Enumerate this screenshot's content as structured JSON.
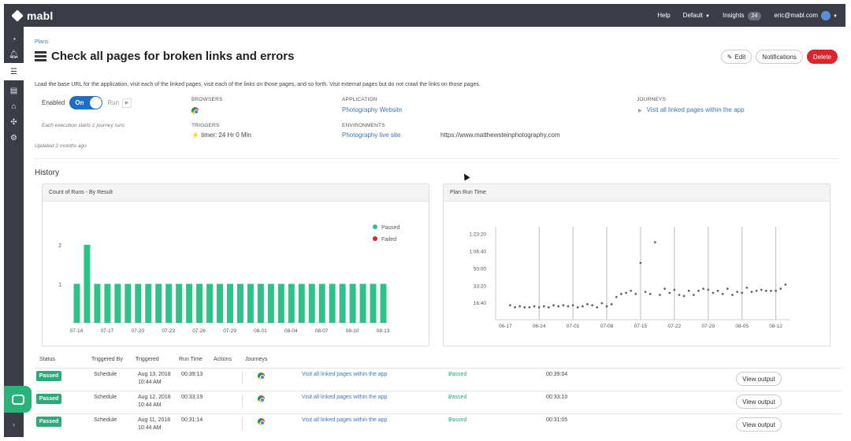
{
  "brand": {
    "name": "mabl",
    "accent": "#2aab7a",
    "danger": "#d9262c",
    "topbar_bg": "#3a3d45"
  },
  "topnav": {
    "help": "Help",
    "workspace": "Default",
    "insights": "Insights",
    "insights_count": "24",
    "user": "eric@mabl.com"
  },
  "sidebar": {
    "icons": [
      "dashboard-icon",
      "bell-icon",
      "plans-icon",
      "tests-icon",
      "environments-icon",
      "integrations-icon",
      "settings-icon"
    ],
    "active": "plans-icon"
  },
  "breadcrumb": "Plans",
  "title": "Check all pages for broken links and errors",
  "buttons": {
    "edit": "Edit",
    "notifications": "Notifications",
    "delete": "Delete"
  },
  "description": "Load the base URL for the application, visit each of the linked pages, visit each of the links on those pages, and so forth. Visit external pages but do not crawl the links on those pages.",
  "enabled": {
    "label": "Enabled",
    "toggle": "On",
    "run": "Run",
    "note": "Each execution starts 1 journey runs",
    "updated": "Updated 2 months ago"
  },
  "details": {
    "browsers_label": "BROWSERS",
    "triggers_label": "TRIGGERS",
    "trigger_value": "timer: 24 Hr 0 Min",
    "application_label": "APPLICATION",
    "application_value": "Photography Website",
    "environments_label": "ENVIRONMENTS",
    "environment_value": "Photography live site",
    "environment_url": "https://www.matthewsteinphotography.com",
    "journeys_label": "JOURNEYS",
    "journey_value": "Visit all linked pages within the app"
  },
  "history_title": "History",
  "chart_data": [
    {
      "type": "bar",
      "title": "Count of Runs - By Result",
      "categories": [
        "07-14",
        "07-15",
        "07-16",
        "07-17",
        "07-18",
        "07-19",
        "07-20",
        "07-21",
        "07-22",
        "07-23",
        "07-24",
        "07-25",
        "07-26",
        "07-27",
        "07-28",
        "07-29",
        "07-30",
        "07-31",
        "08-01",
        "08-02",
        "08-03",
        "08-04",
        "08-05",
        "08-06",
        "08-07",
        "08-08",
        "08-09",
        "08-10",
        "08-11",
        "08-12",
        "08-13"
      ],
      "series": [
        {
          "name": "Passed",
          "color": "#2ec28a",
          "values": [
            1,
            2,
            1,
            1,
            1,
            1,
            1,
            1,
            1,
            1,
            1,
            1,
            1,
            1,
            1,
            1,
            1,
            1,
            1,
            1,
            1,
            1,
            1,
            1,
            1,
            1,
            1,
            1,
            1,
            1,
            1
          ]
        },
        {
          "name": "Failed",
          "color": "#d9262c",
          "values": [
            0,
            0,
            0,
            0,
            0,
            0,
            0,
            0,
            0,
            0,
            0,
            0,
            0,
            0,
            0,
            0,
            0,
            0,
            0,
            0,
            0,
            0,
            0,
            0,
            0,
            0,
            0,
            0,
            0,
            0,
            0
          ]
        }
      ],
      "xticks": [
        "07-14",
        "07-17",
        "07-20",
        "07-23",
        "07-26",
        "07-29",
        "08-01",
        "08-04",
        "08-07",
        "08-10",
        "08-13"
      ],
      "yticks": [
        1,
        2
      ],
      "ylim": [
        0,
        2.3
      ],
      "legend": "top-right"
    },
    {
      "type": "scatter",
      "title": "Plan Run Time",
      "xticks": [
        "06-17",
        "06-24",
        "07-01",
        "07-08",
        "07-15",
        "07-22",
        "07-29",
        "08-05",
        "08-12"
      ],
      "yticks": [
        "16:40",
        "33:20",
        "50:00",
        "1:06:40",
        "1:23:20"
      ],
      "ytick_values_min": [
        16.67,
        33.33,
        50,
        66.67,
        83.33
      ],
      "ylim_min": [
        0,
        90
      ],
      "xlim_day": [
        -2,
        59
      ],
      "vertical_grid_x_day": [
        7,
        14,
        21,
        28,
        35,
        42,
        49,
        56
      ],
      "points_day_min": [
        [
          1,
          14
        ],
        [
          2,
          12
        ],
        [
          3,
          13
        ],
        [
          4,
          12
        ],
        [
          5,
          12
        ],
        [
          6,
          13
        ],
        [
          7,
          12
        ],
        [
          8,
          13
        ],
        [
          9,
          12
        ],
        [
          10,
          14
        ],
        [
          11,
          13
        ],
        [
          12,
          14
        ],
        [
          13,
          13
        ],
        [
          14,
          14
        ],
        [
          15,
          12
        ],
        [
          16,
          13
        ],
        [
          17,
          15
        ],
        [
          18,
          14
        ],
        [
          19,
          12
        ],
        [
          20,
          16
        ],
        [
          21,
          13
        ],
        [
          22,
          15
        ],
        [
          23,
          22
        ],
        [
          24,
          25
        ],
        [
          25,
          26
        ],
        [
          26,
          28
        ],
        [
          27,
          25
        ],
        [
          28,
          55
        ],
        [
          29,
          27
        ],
        [
          30,
          25
        ],
        [
          31,
          75
        ],
        [
          32,
          24
        ],
        [
          33,
          30
        ],
        [
          34,
          26
        ],
        [
          35,
          29
        ],
        [
          36,
          24
        ],
        [
          37,
          23
        ],
        [
          38,
          28
        ],
        [
          39,
          24
        ],
        [
          40,
          28
        ],
        [
          41,
          30
        ],
        [
          42,
          29
        ],
        [
          43,
          26
        ],
        [
          44,
          28
        ],
        [
          45,
          25
        ],
        [
          46,
          30
        ],
        [
          47,
          24
        ],
        [
          48,
          27
        ],
        [
          49,
          26
        ],
        [
          50,
          31
        ],
        [
          51,
          27
        ],
        [
          52,
          28
        ],
        [
          53,
          29
        ],
        [
          54,
          28
        ],
        [
          55,
          28
        ],
        [
          56,
          28
        ],
        [
          57,
          30
        ],
        [
          58,
          34
        ]
      ]
    }
  ],
  "table": {
    "headers": {
      "status": "Status",
      "triggered_by": "Triggered By",
      "triggered": "Triggered",
      "run_time": "Run Time",
      "actions": "Actions",
      "journeys": "Journeys"
    },
    "rows": [
      {
        "status": "Passed",
        "triggered_by": "Schedule",
        "date": "Aug 13, 2018",
        "time": "10:44 AM",
        "run_time": "00:39:13",
        "journey": "Visit all linked pages within the app",
        "result": "Passed",
        "journey_time": "00:39:04",
        "output": "View output"
      },
      {
        "status": "Passed",
        "triggered_by": "Schedule",
        "date": "Aug 12, 2018",
        "time": "10:44 AM",
        "run_time": "00:33:19",
        "journey": "Visit all linked pages within the app",
        "result": "Passed",
        "journey_time": "00:33:10",
        "output": "View output"
      },
      {
        "status": "Passed",
        "triggered_by": "Schedule",
        "date": "Aug 11, 2018",
        "time": "10:44 AM",
        "run_time": "00:31:14",
        "journey": "Visit all linked pages within the app",
        "result": "Passed",
        "journey_time": "00:31:05",
        "output": "View output"
      }
    ]
  }
}
